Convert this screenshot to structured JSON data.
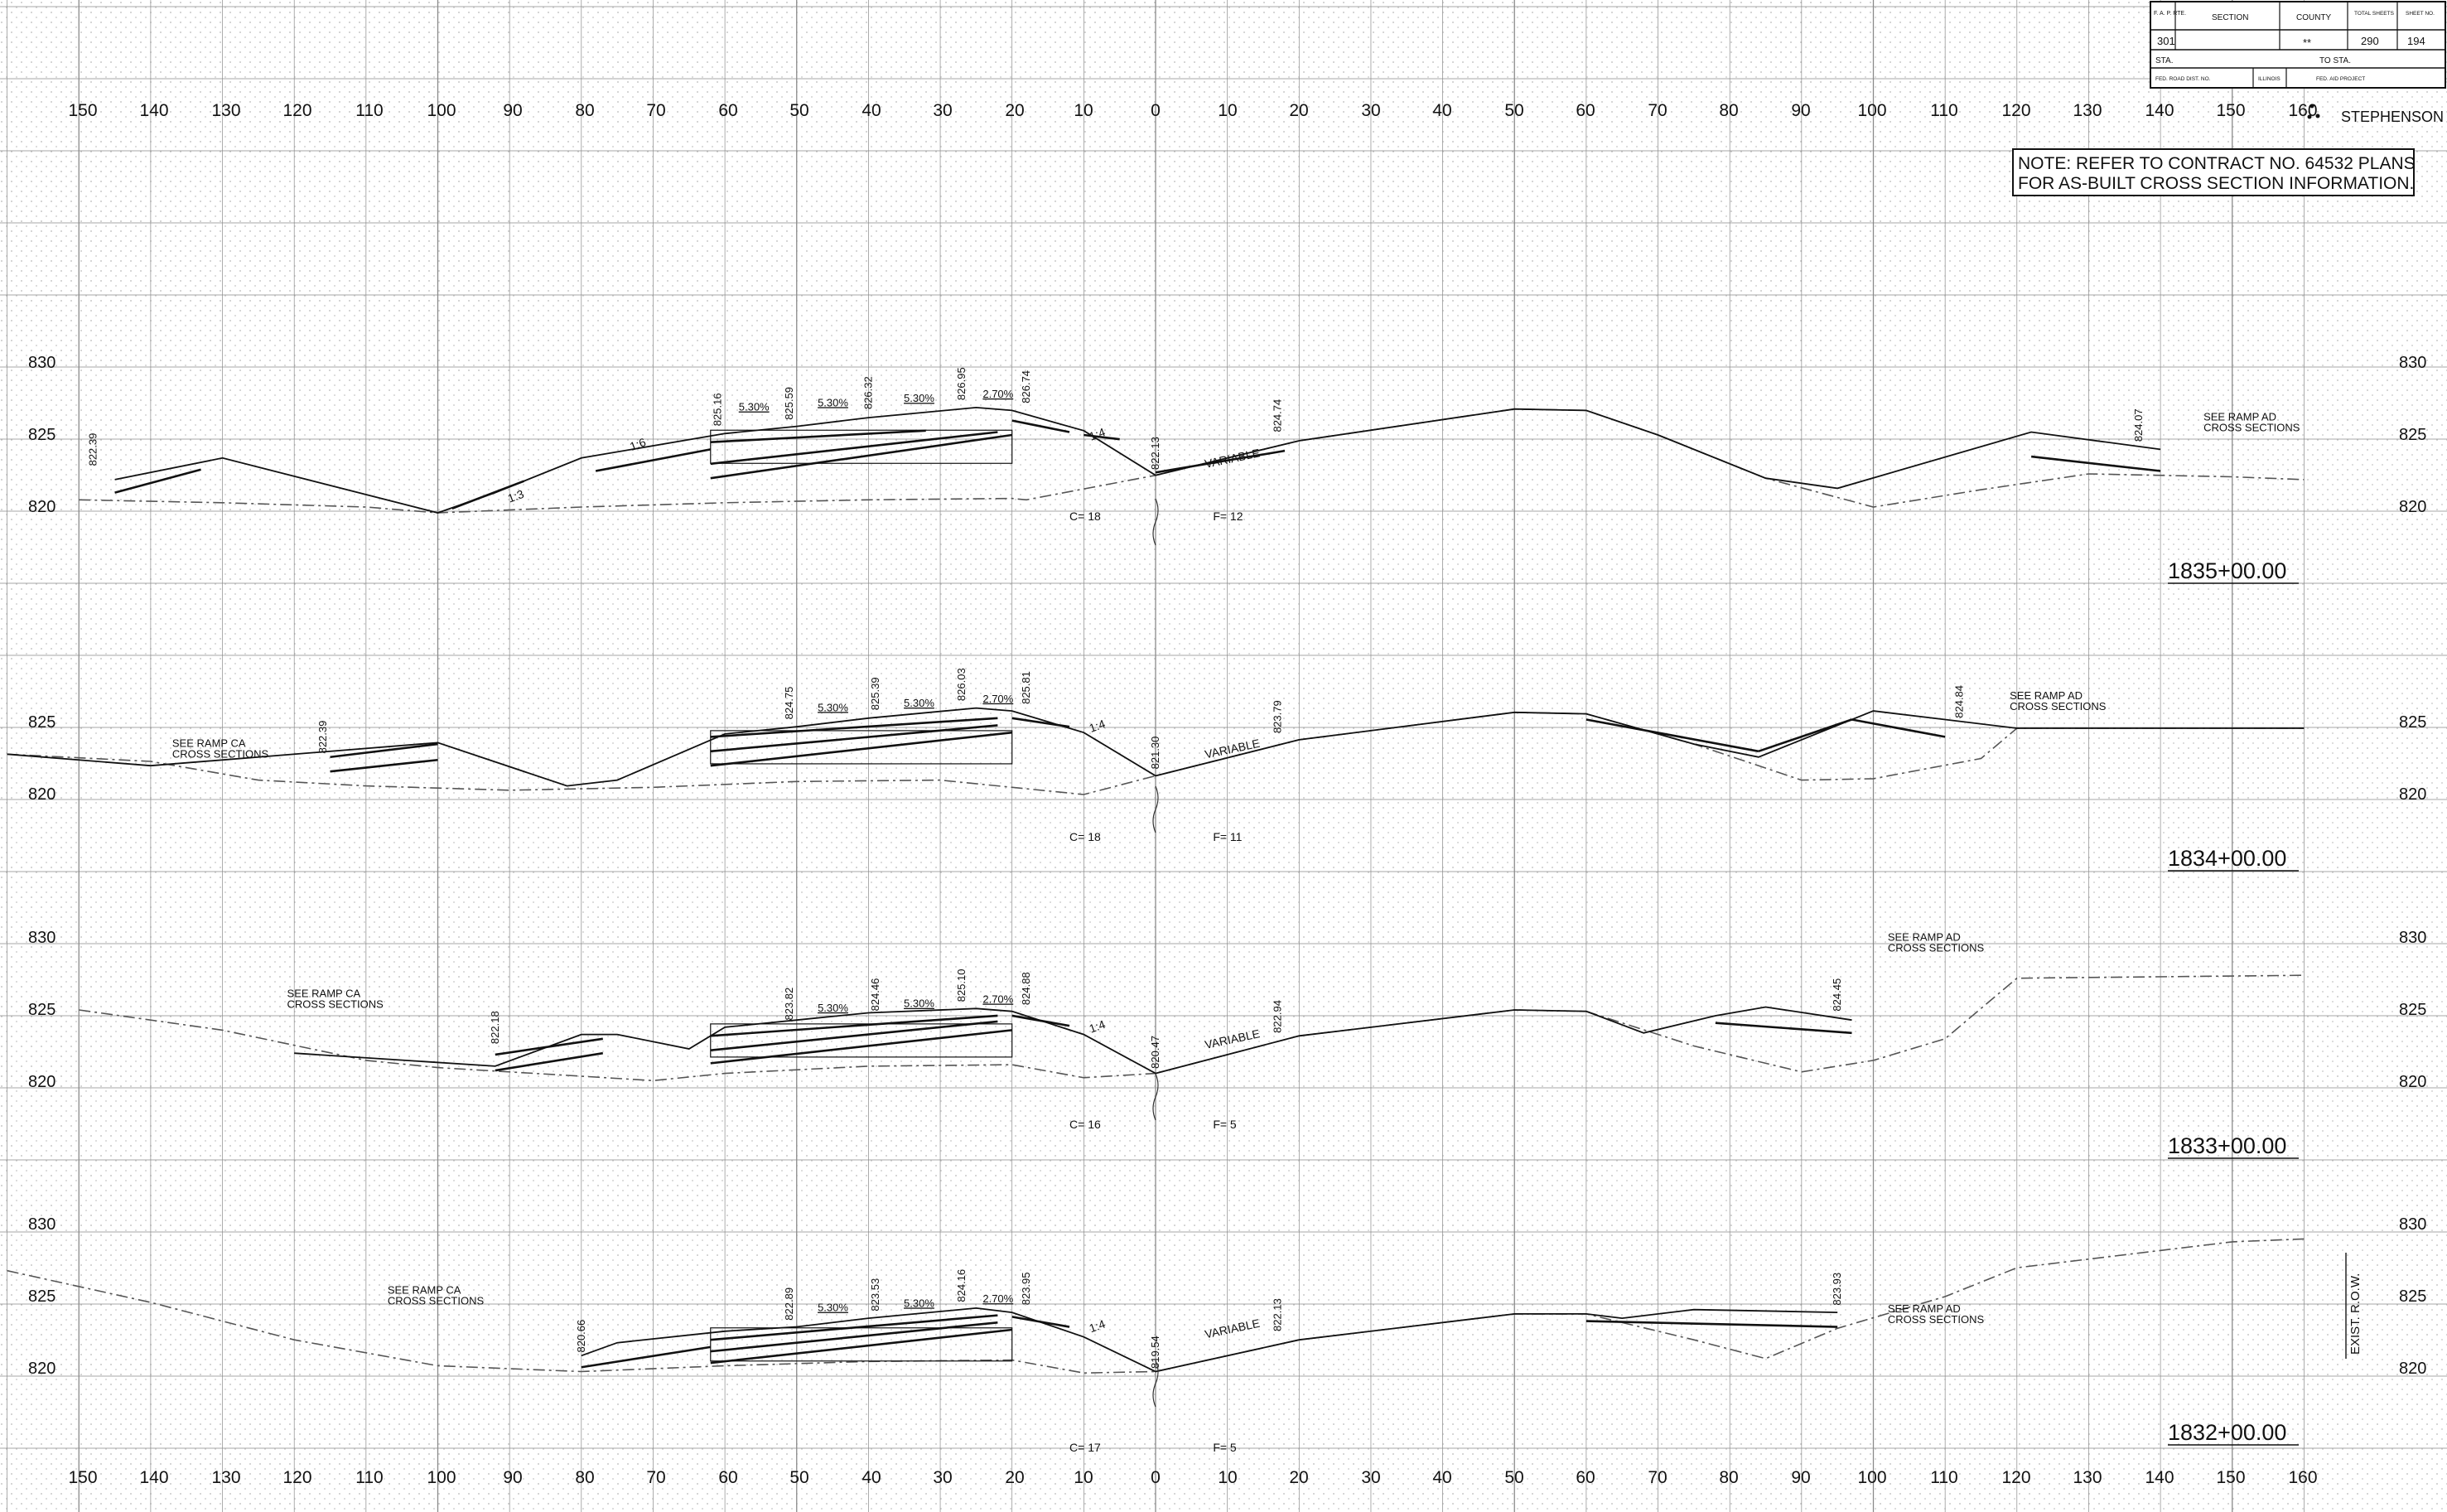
{
  "title_block": {
    "headers": [
      "F. A. P. RTE.",
      "SECTION",
      "COUNTY",
      "TOTAL SHEETS",
      "SHEET NO."
    ],
    "values": [
      "301",
      "",
      "**",
      "290",
      "194"
    ],
    "sta_label": "STA.",
    "to_sta_label": "TO STA.",
    "row3": [
      "FED. ROAD DIST. NO.",
      "ILLINOIS",
      "FED. AID PROJECT"
    ]
  },
  "county_stamp": "STEPHENSON",
  "note": {
    "line1": "NOTE:  REFER TO CONTRACT NO. 64532 PLANS",
    "line2": "FOR AS-BUILT CROSS SECTION INFORMATION."
  },
  "offset_labels_top": [
    "150",
    "140",
    "130",
    "120",
    "110",
    "100",
    "90",
    "80",
    "70",
    "60",
    "50",
    "40",
    "30",
    "20",
    "10",
    "0",
    "10",
    "20",
    "30",
    "40",
    "50",
    "60",
    "70",
    "80",
    "90",
    "100",
    "110",
    "120",
    "130",
    "140",
    "150",
    "160"
  ],
  "offset_labels_bottom": [
    "150",
    "140",
    "130",
    "120",
    "110",
    "100",
    "90",
    "80",
    "70",
    "60",
    "50",
    "40",
    "30",
    "20",
    "10",
    "0",
    "10",
    "20",
    "30",
    "40",
    "50",
    "60",
    "70",
    "80",
    "90",
    "100",
    "110",
    "120",
    "130",
    "140",
    "150",
    "160"
  ],
  "row_label": "EXIST. R.O.W.",
  "sections": [
    {
      "station": "1835+00.00",
      "elev_labels": [
        "830",
        "825",
        "820"
      ],
      "cut": "C= 18",
      "fill": "F= 12",
      "variable": "VARIABLE",
      "slopes": [
        "1:3",
        "1:6",
        "1:4"
      ],
      "grades": [
        "5.30%",
        "5.30%",
        "5.30%",
        "2.70%"
      ],
      "elevations": [
        "822.39",
        "825.16",
        "825.59",
        "826.32",
        "826.95",
        "826.74",
        "822.13",
        "824.74",
        "824.07"
      ],
      "notes": [
        {
          "l1": "SEE RAMP AD",
          "l2": "CROSS SECTIONS"
        }
      ],
      "ground": [
        [
          -150,
          820.5
        ],
        [
          -130,
          820.3
        ],
        [
          -110,
          820.0
        ],
        [
          -100,
          819.6
        ],
        [
          -80,
          820.0
        ],
        [
          -60,
          820.3
        ],
        [
          -40,
          820.5
        ],
        [
          -20,
          820.6
        ],
        [
          -18,
          820.5
        ],
        [
          0,
          822.2
        ],
        [
          20,
          824.6
        ],
        [
          50,
          826.8
        ],
        [
          60,
          826.7
        ],
        [
          70,
          825.0
        ],
        [
          85,
          822.0
        ],
        [
          100,
          820.0
        ],
        [
          115,
          821.2
        ],
        [
          130,
          822.3
        ],
        [
          150,
          822.1
        ],
        [
          160,
          821.9
        ]
      ],
      "profile": [
        [
          -145,
          821.9
        ],
        [
          -130,
          823.4
        ],
        [
          -100,
          819.6
        ],
        [
          -92,
          821.0
        ],
        [
          -80,
          823.4
        ],
        [
          -60,
          825.1
        ],
        [
          -50,
          825.6
        ],
        [
          -40,
          826.2
        ],
        [
          -25,
          826.9
        ],
        [
          -20,
          826.7
        ],
        [
          -10,
          825.3
        ],
        [
          0,
          822.2
        ],
        [
          20,
          824.6
        ],
        [
          50,
          826.8
        ],
        [
          60,
          826.7
        ],
        [
          70,
          825.0
        ],
        [
          85,
          822.0
        ],
        [
          95,
          821.3
        ],
        [
          122,
          825.2
        ],
        [
          140,
          824.0
        ]
      ],
      "strips": [
        [
          [
            -145,
            821.0
          ],
          [
            -133,
            822.6
          ]
        ],
        [
          [
            -78,
            822.5
          ],
          [
            -62,
            824.0
          ]
        ],
        [
          [
            -98,
            819.9
          ],
          [
            -88,
            821.8
          ]
        ],
        [
          [
            -62,
            824.5
          ],
          [
            -32,
            825.3
          ]
        ],
        [
          [
            -62,
            823.0
          ],
          [
            -22,
            825.2
          ]
        ],
        [
          [
            -62,
            822.0
          ],
          [
            -20,
            825.0
          ]
        ],
        [
          [
            -20,
            826.0
          ],
          [
            -12,
            825.2
          ]
        ],
        [
          [
            -10,
            825.0
          ],
          [
            -5,
            824.7
          ]
        ],
        [
          [
            0,
            822.4
          ],
          [
            18,
            823.9
          ]
        ],
        [
          [
            122,
            823.5
          ],
          [
            140,
            822.5
          ]
        ]
      ]
    },
    {
      "station": "1834+00.00",
      "elev_labels": [
        "825",
        "820"
      ],
      "cut": "C= 18",
      "fill": "F= 11",
      "variable": "VARIABLE",
      "slopes": [
        "1:4"
      ],
      "grades": [
        "5.30%",
        "5.30%",
        "2.70%"
      ],
      "elevations": [
        "822.39",
        "824.75",
        "825.39",
        "826.03",
        "825.81",
        "821.30",
        "823.79",
        "824.84"
      ],
      "notes": [
        {
          "l1": "SEE RAMP CA",
          "l2": "CROSS SECTIONS"
        },
        {
          "l1": "SEE RAMP AD",
          "l2": "CROSS SECTIONS"
        }
      ],
      "ground": [
        [
          -160,
          822.8
        ],
        [
          -140,
          822.3
        ],
        [
          -125,
          821.0
        ],
        [
          -110,
          820.6
        ],
        [
          -90,
          820.3
        ],
        [
          -70,
          820.5
        ],
        [
          -50,
          820.9
        ],
        [
          -30,
          821.0
        ],
        [
          -10,
          820.0
        ],
        [
          0,
          821.3
        ],
        [
          20,
          823.8
        ],
        [
          50,
          825.7
        ],
        [
          60,
          825.6
        ],
        [
          75,
          823.5
        ],
        [
          90,
          821.0
        ],
        [
          100,
          821.1
        ],
        [
          115,
          822.5
        ],
        [
          120,
          824.6
        ],
        [
          160,
          824.6
        ]
      ],
      "profile": [
        [
          -160,
          822.8
        ],
        [
          -140,
          822.0
        ],
        [
          -100,
          823.6
        ],
        [
          -82,
          820.6
        ],
        [
          -75,
          821.0
        ],
        [
          -60,
          824.2
        ],
        [
          -50,
          824.7
        ],
        [
          -40,
          825.3
        ],
        [
          -25,
          826.0
        ],
        [
          -20,
          825.8
        ],
        [
          -10,
          824.3
        ],
        [
          0,
          821.3
        ],
        [
          20,
          823.8
        ],
        [
          50,
          825.7
        ],
        [
          60,
          825.6
        ],
        [
          75,
          823.5
        ],
        [
          84,
          822.6
        ],
        [
          100,
          825.8
        ],
        [
          110,
          825.2
        ],
        [
          120,
          824.6
        ],
        [
          160,
          824.6
        ]
      ],
      "strips": [
        [
          [
            -115,
            821.6
          ],
          [
            -100,
            822.4
          ]
        ],
        [
          [
            -115,
            822.6
          ],
          [
            -100,
            823.5
          ]
        ],
        [
          [
            -62,
            824.0
          ],
          [
            -22,
            825.3
          ]
        ],
        [
          [
            -62,
            823.0
          ],
          [
            -22,
            824.8
          ]
        ],
        [
          [
            -62,
            822.0
          ],
          [
            -20,
            824.3
          ]
        ],
        [
          [
            -20,
            825.3
          ],
          [
            -12,
            824.7
          ]
        ],
        [
          [
            60,
            825.2
          ],
          [
            84,
            823.0
          ]
        ],
        [
          [
            84,
            823.0
          ],
          [
            97,
            825.2
          ]
        ],
        [
          [
            97,
            825.2
          ],
          [
            110,
            824.0
          ]
        ]
      ]
    },
    {
      "station": "1833+00.00",
      "elev_labels": [
        "830",
        "825",
        "820"
      ],
      "cut": "C= 16",
      "fill": "F= 5",
      "variable": "VARIABLE",
      "slopes": [
        "1:4"
      ],
      "grades": [
        "5.30%",
        "5.30%",
        "2.70%"
      ],
      "elevations": [
        "822.18",
        "823.82",
        "824.46",
        "825.10",
        "824.88",
        "820.47",
        "822.94",
        "824.45"
      ],
      "notes": [
        {
          "l1": "SEE RAMP CA",
          "l2": "CROSS SECTIONS"
        },
        {
          "l1": "SEE RAMP AD",
          "l2": "CROSS SECTIONS"
        }
      ],
      "ground": [
        [
          -150,
          825.0
        ],
        [
          -130,
          823.6
        ],
        [
          -110,
          821.5
        ],
        [
          -100,
          821.0
        ],
        [
          -80,
          820.4
        ],
        [
          -70,
          820.1
        ],
        [
          -60,
          820.6
        ],
        [
          -40,
          821.1
        ],
        [
          -20,
          821.2
        ],
        [
          -10,
          820.3
        ],
        [
          0,
          820.6
        ],
        [
          20,
          823.2
        ],
        [
          50,
          825.0
        ],
        [
          60,
          824.9
        ],
        [
          75,
          822.5
        ],
        [
          90,
          820.7
        ],
        [
          100,
          821.5
        ],
        [
          110,
          823.0
        ],
        [
          120,
          827.2
        ],
        [
          160,
          827.4
        ]
      ],
      "profile": [
        [
          -120,
          822.0
        ],
        [
          -92,
          821.1
        ],
        [
          -80,
          823.3
        ],
        [
          -75,
          823.3
        ],
        [
          -65,
          822.3
        ],
        [
          -60,
          823.8
        ],
        [
          -50,
          824.3
        ],
        [
          -40,
          824.8
        ],
        [
          -25,
          825.1
        ],
        [
          -20,
          824.9
        ],
        [
          -10,
          823.3
        ],
        [
          0,
          820.6
        ],
        [
          20,
          823.2
        ],
        [
          50,
          825.0
        ],
        [
          60,
          824.9
        ],
        [
          68,
          823.4
        ],
        [
          78,
          824.6
        ],
        [
          85,
          825.2
        ],
        [
          97,
          824.3
        ]
      ],
      "strips": [
        [
          [
            -92,
            820.8
          ],
          [
            -77,
            822.0
          ]
        ],
        [
          [
            -92,
            821.9
          ],
          [
            -77,
            823.0
          ]
        ],
        [
          [
            -62,
            823.2
          ],
          [
            -22,
            824.6
          ]
        ],
        [
          [
            -62,
            822.2
          ],
          [
            -22,
            824.2
          ]
        ],
        [
          [
            -62,
            821.3
          ],
          [
            -20,
            823.6
          ]
        ],
        [
          [
            -20,
            824.6
          ],
          [
            -12,
            823.9
          ]
        ],
        [
          [
            78,
            824.1
          ],
          [
            97,
            823.4
          ]
        ]
      ]
    },
    {
      "station": "1832+00.00",
      "elev_labels": [
        "830",
        "825",
        "820"
      ],
      "cut": "C= 17",
      "fill": "F= 5",
      "variable": "VARIABLE",
      "slopes": [
        "1:4"
      ],
      "grades": [
        "5.30%",
        "5.30%",
        "2.70%"
      ],
      "elevations": [
        "820.66",
        "822.89",
        "823.53",
        "824.16",
        "823.95",
        "819.54",
        "822.13",
        "823.93"
      ],
      "notes": [
        {
          "l1": "SEE RAMP CA",
          "l2": "CROSS SECTIONS"
        },
        {
          "l1": "SEE RAMP AD",
          "l2": "CROSS SECTIONS"
        }
      ],
      "ground": [
        [
          -160,
          826.8
        ],
        [
          -140,
          824.6
        ],
        [
          -120,
          822.0
        ],
        [
          -100,
          820.2
        ],
        [
          -80,
          819.8
        ],
        [
          -60,
          820.2
        ],
        [
          -40,
          820.5
        ],
        [
          -20,
          820.6
        ],
        [
          -10,
          819.7
        ],
        [
          0,
          819.8
        ],
        [
          20,
          822.0
        ],
        [
          50,
          823.8
        ],
        [
          60,
          823.8
        ],
        [
          75,
          822.0
        ],
        [
          85,
          820.7
        ],
        [
          95,
          822.8
        ],
        [
          110,
          825.0
        ],
        [
          120,
          827.0
        ],
        [
          150,
          828.8
        ],
        [
          160,
          829.0
        ]
      ],
      "profile": [
        [
          -80,
          820.9
        ],
        [
          -75,
          821.8
        ],
        [
          -60,
          822.6
        ],
        [
          -50,
          822.9
        ],
        [
          -40,
          823.5
        ],
        [
          -25,
          824.2
        ],
        [
          -20,
          823.9
        ],
        [
          -10,
          822.2
        ],
        [
          0,
          819.8
        ],
        [
          20,
          822.0
        ],
        [
          50,
          823.8
        ],
        [
          60,
          823.8
        ],
        [
          65,
          823.5
        ],
        [
          75,
          824.1
        ],
        [
          95,
          823.9
        ]
      ],
      "strips": [
        [
          [
            -80,
            820.1
          ],
          [
            -62,
            821.5
          ]
        ],
        [
          [
            -62,
            822.0
          ],
          [
            -22,
            823.7
          ]
        ],
        [
          [
            -62,
            821.2
          ],
          [
            -22,
            823.2
          ]
        ],
        [
          [
            -62,
            820.4
          ],
          [
            -20,
            822.7
          ]
        ],
        [
          [
            -20,
            823.6
          ],
          [
            -12,
            822.9
          ]
        ],
        [
          [
            60,
            823.3
          ],
          [
            95,
            822.9
          ]
        ]
      ]
    }
  ]
}
